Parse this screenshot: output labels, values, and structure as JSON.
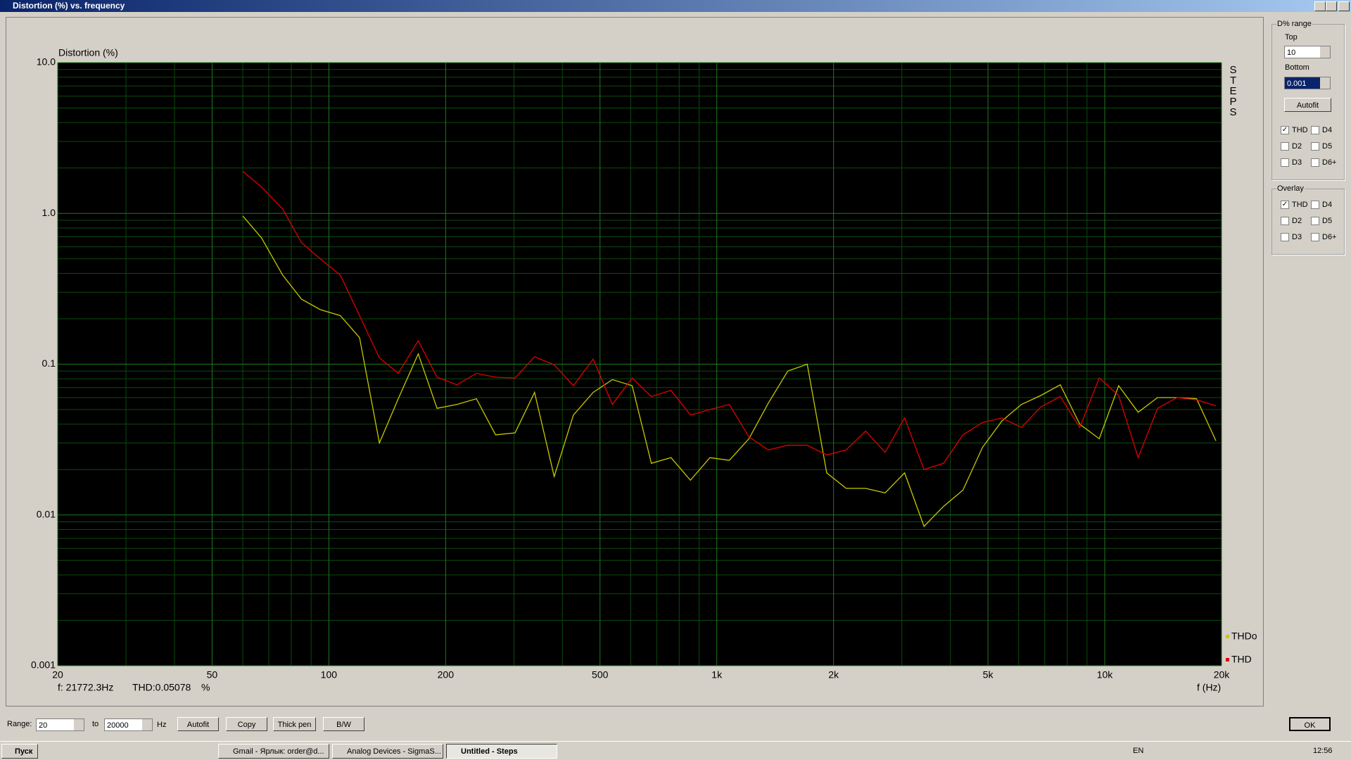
{
  "window_title": "Distortion (%) vs. frequency",
  "chart_data": {
    "type": "line",
    "title": "Distortion (%)",
    "x_label": "f (Hz)",
    "side_label": "STEPS",
    "xscale": "log",
    "yscale": "log",
    "grid": true,
    "x": [
      60,
      67,
      76,
      85,
      95,
      107,
      120,
      135,
      151,
      170,
      190,
      214,
      240,
      269,
      302,
      339,
      381,
      427,
      480,
      538,
      605,
      678,
      762,
      855,
      960,
      1077,
      1210,
      1357,
      1524,
      1710,
      1920,
      2155,
      2419,
      2715,
      3048,
      3421,
      3840,
      4310,
      4838,
      5431,
      6096,
      6842,
      7680,
      8621,
      9677,
      10862,
      12192,
      13685,
      15361,
      17242,
      19354
    ],
    "series": [
      {
        "name": "THDo",
        "color": "#c8c800",
        "values": [
          0.96,
          0.69,
          0.39,
          0.27,
          0.23,
          0.21,
          0.15,
          0.03,
          0.059,
          0.117,
          0.051,
          0.054,
          0.059,
          0.034,
          0.035,
          0.065,
          0.018,
          0.046,
          0.065,
          0.079,
          0.072,
          0.022,
          0.024,
          0.017,
          0.024,
          0.023,
          0.032,
          0.055,
          0.09,
          0.1,
          0.019,
          0.015,
          0.015,
          0.014,
          0.019,
          0.0084,
          0.0114,
          0.0146,
          0.028,
          0.042,
          0.054,
          0.062,
          0.073,
          0.04,
          0.032,
          0.072,
          0.048,
          0.06,
          0.06,
          0.059,
          0.031
        ]
      },
      {
        "name": "THD",
        "color": "#e00000",
        "values": [
          1.9,
          1.5,
          1.07,
          0.64,
          0.5,
          0.39,
          0.21,
          0.11,
          0.087,
          0.143,
          0.082,
          0.073,
          0.087,
          0.082,
          0.081,
          0.112,
          0.099,
          0.072,
          0.108,
          0.054,
          0.081,
          0.061,
          0.067,
          0.046,
          0.05,
          0.054,
          0.033,
          0.027,
          0.029,
          0.029,
          0.025,
          0.027,
          0.036,
          0.026,
          0.044,
          0.02,
          0.022,
          0.034,
          0.041,
          0.044,
          0.038,
          0.052,
          0.061,
          0.038,
          0.081,
          0.062,
          0.024,
          0.051,
          0.06,
          0.058,
          0.053
        ]
      }
    ],
    "xlim": [
      20,
      20000
    ],
    "ylim": [
      0.001,
      10
    ],
    "xticks": [
      20,
      50,
      100,
      200,
      500,
      {
        "value": 1000,
        "label": "1k"
      },
      {
        "value": 2000,
        "label": "2k"
      },
      {
        "value": 5000,
        "label": "5k"
      },
      {
        "value": 10000,
        "label": "10k"
      },
      {
        "value": 20000,
        "label": "20k"
      }
    ],
    "yticks": [
      {
        "value": 10,
        "label": "10.0"
      },
      {
        "value": 1,
        "label": "1.0"
      },
      0.1,
      0.01,
      0.001
    ],
    "x_grid": [
      30,
      40,
      60,
      70,
      80,
      90,
      300,
      400,
      600,
      700,
      800,
      900,
      3000,
      4000,
      6000,
      7000,
      8000,
      9000
    ],
    "y_grid": [
      0.002,
      0.003,
      0.004,
      0.005,
      0.006,
      0.007,
      0.008,
      0.009,
      0.02,
      0.03,
      0.04,
      0.05,
      0.06,
      0.07,
      0.08,
      0.09,
      0.2,
      0.3,
      0.4,
      0.5,
      0.6,
      0.7,
      0.8,
      0.9,
      2,
      3,
      4,
      5,
      6,
      7,
      8,
      9
    ],
    "readout": {
      "freq": "f: 21772.3Hz",
      "value": "THD:0.05078",
      "unit": "%"
    }
  },
  "side_panel": {
    "range_group": "D% range",
    "top_label": "Top",
    "top_value": "10",
    "bottom_label": "Bottom",
    "bottom_value": "0.001",
    "autofit": "Autofit",
    "range_checks": [
      {
        "label": "THD",
        "checked": true
      },
      {
        "label": "D4",
        "checked": false
      },
      {
        "label": "D2",
        "checked": false
      },
      {
        "label": "D5",
        "checked": false
      },
      {
        "label": "D3",
        "checked": false
      },
      {
        "label": "D6+",
        "checked": false
      }
    ],
    "overlay_group": "Overlay",
    "overlay_checks": [
      {
        "label": "THD",
        "checked": true
      },
      {
        "label": "D4",
        "checked": false
      },
      {
        "label": "D2",
        "checked": false
      },
      {
        "label": "D5",
        "checked": false
      },
      {
        "label": "D3",
        "checked": false
      },
      {
        "label": "D6+",
        "checked": false
      }
    ]
  },
  "bottom_bar": {
    "range_label": "Range:",
    "from": "20",
    "to_label": "to",
    "to": "20000",
    "unit": "Hz",
    "autofit": "Autofit",
    "copy": "Copy",
    "thick_pen": "Thick pen",
    "bw": "B/W",
    "ok": "OK"
  },
  "taskbar": {
    "start": "Пуск",
    "tasks": [
      "Gmail - Ярлык: order@d...",
      "Analog Devices - SigmaS...",
      "Untitled - Steps"
    ],
    "lang": "EN",
    "clock": "12:56"
  }
}
